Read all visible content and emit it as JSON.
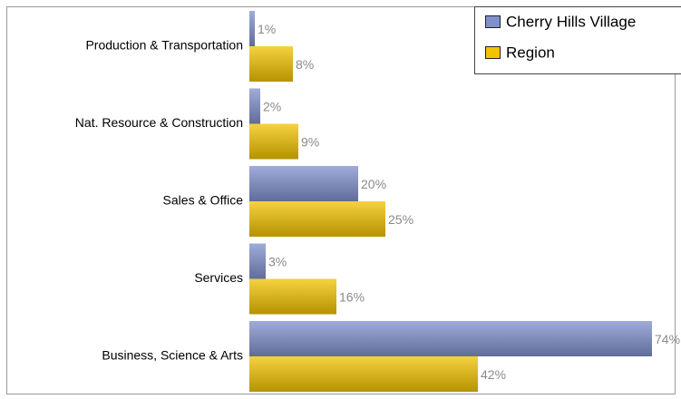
{
  "chart_data": {
    "type": "bar",
    "orientation": "horizontal",
    "categories": [
      "Production & Transportation",
      "Nat. Resource & Construction",
      "Sales & Office",
      "Services",
      "Business, Science & Arts"
    ],
    "series": [
      {
        "name": "Cherry Hills Village",
        "color": "#8090cc",
        "values": [
          1,
          2,
          20,
          3,
          74
        ],
        "value_labels": [
          "1%",
          "2%",
          "20%",
          "3%",
          "74%"
        ]
      },
      {
        "name": "Region",
        "color": "#f2c300",
        "values": [
          8,
          9,
          25,
          16,
          42
        ],
        "value_labels": [
          "8%",
          "9%",
          "25%",
          "16%",
          "42%"
        ]
      }
    ],
    "legend": "top-right"
  }
}
